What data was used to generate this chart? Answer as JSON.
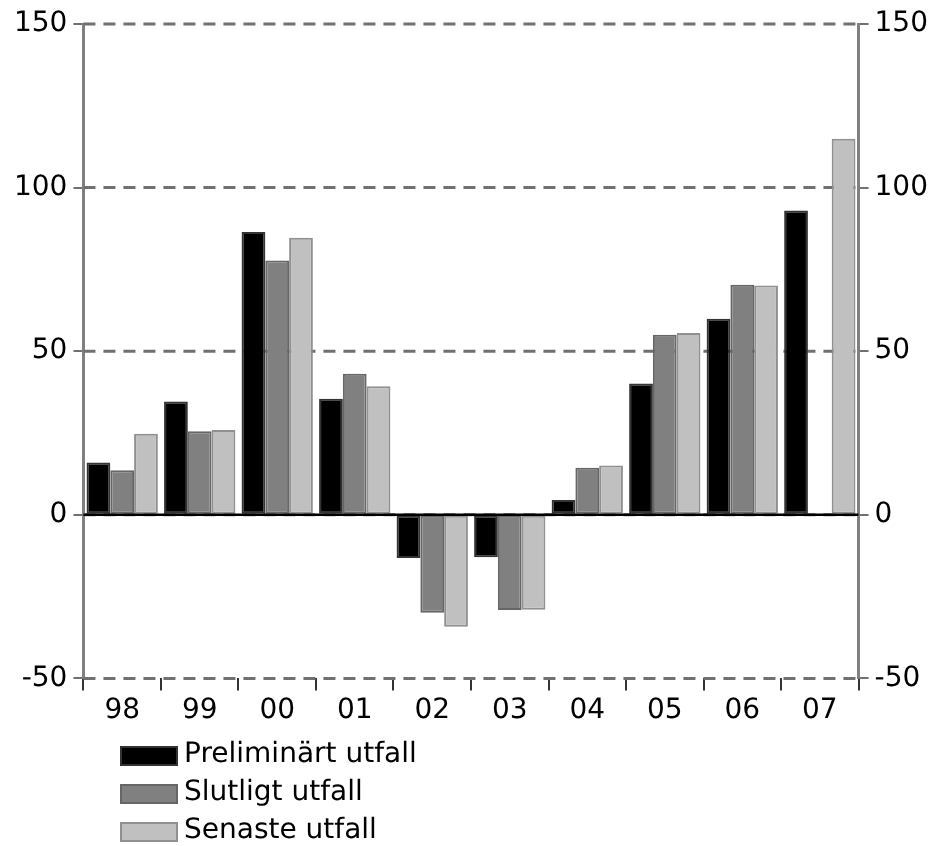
{
  "chart_data": {
    "type": "bar",
    "categories": [
      "98",
      "99",
      "00",
      "01",
      "02",
      "03",
      "04",
      "05",
      "06",
      "07"
    ],
    "series": [
      {
        "name": "Preliminärt utfall",
        "color": "#000000",
        "values": [
          16,
          34.6,
          86.4,
          35.5,
          -13.2,
          -13,
          4.5,
          40.1,
          59.9,
          93
        ]
      },
      {
        "name": "Slutligt utfall",
        "color": "#808080",
        "values": [
          13.6,
          25.5,
          77.7,
          43.1,
          -29.9,
          -29.1,
          14.4,
          55,
          70.3,
          null
        ]
      },
      {
        "name": "Senaste utfall",
        "color": "#c0c0c0",
        "values": [
          24.8,
          25.9,
          84.7,
          39.3,
          -34.2,
          -29,
          15.1,
          55.6,
          70.1,
          114.9
        ]
      }
    ],
    "ylim": [
      -50,
      150
    ],
    "yticks": [
      -50,
      0,
      50,
      100,
      150
    ],
    "y2lim": [
      -50,
      150
    ],
    "y2ticks": [
      -50,
      0,
      50,
      100,
      150
    ],
    "grid": "y",
    "legend": "bottom left"
  }
}
